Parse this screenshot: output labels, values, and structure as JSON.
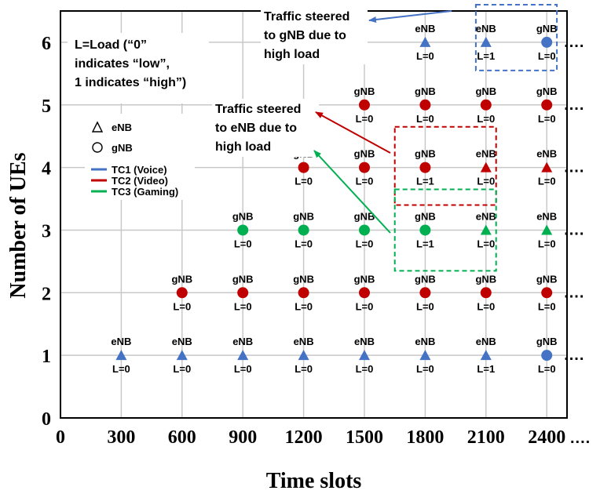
{
  "chart_data": {
    "type": "scatter",
    "title": "",
    "xlabel": "Time slots",
    "ylabel": "Number of UEs",
    "xlim": [
      0,
      2500
    ],
    "ylim": [
      0,
      6.5
    ],
    "x_ticks": [
      "0",
      "300",
      "600",
      "900",
      "1200",
      "1500",
      "1800",
      "2100",
      "2400"
    ],
    "y_ticks": [
      "0",
      "1",
      "2",
      "3",
      "4",
      "5",
      "6"
    ],
    "continuation": "....",
    "colors": {
      "TC1": "#4472c4",
      "TC2": "#c00000",
      "TC3": "#00b050"
    },
    "legend": {
      "note_lines": [
        "L=Load (“0”",
        "indicates “low”,",
        "1 indicates “high”)"
      ],
      "shapes": [
        {
          "shape": "triangle",
          "label": "eNB"
        },
        {
          "shape": "circle",
          "label": "gNB"
        }
      ],
      "classes": [
        {
          "key": "TC1",
          "label": "TC1 (Voice)"
        },
        {
          "key": "TC2",
          "label": "TC2 (Video)"
        },
        {
          "key": "TC3",
          "label": "TC3 (Gaming)"
        }
      ]
    },
    "series": [
      {
        "name": "TC1 (Voice)",
        "key": "TC1",
        "y": 1,
        "points": [
          {
            "x": 300,
            "node": "eNB",
            "load": "L=0"
          },
          {
            "x": 600,
            "node": "eNB",
            "load": "L=0"
          },
          {
            "x": 900,
            "node": "eNB",
            "load": "L=0"
          },
          {
            "x": 1200,
            "node": "eNB",
            "load": "L=0"
          },
          {
            "x": 1500,
            "node": "eNB",
            "load": "L=0"
          },
          {
            "x": 1800,
            "node": "eNB",
            "load": "L=0"
          },
          {
            "x": 2100,
            "node": "eNB",
            "load": "L=1"
          },
          {
            "x": 2400,
            "node": "gNB",
            "load": "L=0"
          }
        ]
      },
      {
        "name": "TC2 (Video)",
        "key": "TC2",
        "y": 2,
        "points": [
          {
            "x": 600,
            "node": "gNB",
            "load": "L=0"
          },
          {
            "x": 900,
            "node": "gNB",
            "load": "L=0"
          },
          {
            "x": 1200,
            "node": "gNB",
            "load": "L=0"
          },
          {
            "x": 1500,
            "node": "gNB",
            "load": "L=0"
          },
          {
            "x": 1800,
            "node": "gNB",
            "load": "L=0"
          },
          {
            "x": 2100,
            "node": "gNB",
            "load": "L=0"
          },
          {
            "x": 2400,
            "node": "gNB",
            "load": "L=0"
          }
        ]
      },
      {
        "name": "TC3 (Gaming)",
        "key": "TC3",
        "y": 3,
        "points": [
          {
            "x": 900,
            "node": "gNB",
            "load": "L=0"
          },
          {
            "x": 1200,
            "node": "gNB",
            "load": "L=0"
          },
          {
            "x": 1500,
            "node": "gNB",
            "load": "L=0"
          },
          {
            "x": 1800,
            "node": "gNB",
            "load": "L=1"
          },
          {
            "x": 2100,
            "node": "eNB",
            "load": "L=0"
          },
          {
            "x": 2400,
            "node": "eNB",
            "load": "L=0"
          }
        ]
      },
      {
        "name": "TC2 (Video)",
        "key": "TC2",
        "y": 4,
        "points": [
          {
            "x": 1200,
            "node": "gNB",
            "load": "L=0"
          },
          {
            "x": 1500,
            "node": "gNB",
            "load": "L=0"
          },
          {
            "x": 1800,
            "node": "gNB",
            "load": "L=1"
          },
          {
            "x": 2100,
            "node": "eNB",
            "load": "L=0"
          },
          {
            "x": 2400,
            "node": "eNB",
            "load": "L=0"
          }
        ]
      },
      {
        "name": "TC2 (Video)",
        "key": "TC2",
        "y": 5,
        "points": [
          {
            "x": 1500,
            "node": "gNB",
            "load": "L=0"
          },
          {
            "x": 1800,
            "node": "gNB",
            "load": "L=0"
          },
          {
            "x": 2100,
            "node": "gNB",
            "load": "L=0"
          },
          {
            "x": 2400,
            "node": "gNB",
            "load": "L=0"
          }
        ]
      },
      {
        "name": "TC1 (Voice)",
        "key": "TC1",
        "y": 6,
        "points": [
          {
            "x": 1800,
            "node": "eNB",
            "load": "L=0"
          },
          {
            "x": 2100,
            "node": "eNB",
            "load": "L=1"
          },
          {
            "x": 2400,
            "node": "gNB",
            "load": "L=0"
          }
        ]
      }
    ],
    "continued_rows": [
      1,
      2,
      3,
      4,
      5,
      6
    ],
    "annotations": [
      {
        "key": "TC1",
        "lines": [
          "Traffic steered",
          "to gNB due to",
          "high load"
        ],
        "box_x": [
          2050,
          2450
        ],
        "box_y": [
          5.55,
          6.6
        ]
      },
      {
        "key": "TC2",
        "lines": [
          "Traffic steered",
          "to eNB due to",
          "high load"
        ],
        "box_x": [
          1650,
          2150
        ],
        "box_y": [
          3.4,
          4.65
        ]
      },
      {
        "key": "TC3",
        "lines": [],
        "box_x": [
          1650,
          2150
        ],
        "box_y": [
          2.35,
          3.65
        ]
      }
    ]
  }
}
